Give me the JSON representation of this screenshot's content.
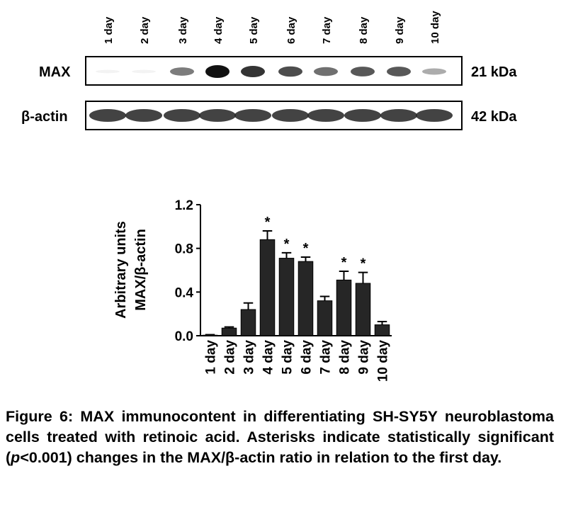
{
  "blot": {
    "rows": [
      {
        "label": "MAX",
        "size": "21 kDa"
      },
      {
        "label": "β-actin",
        "size": "42 kDa"
      }
    ]
  },
  "chart_data": {
    "type": "bar",
    "ylabel": [
      "Arbitrary units",
      "MAX/β-actin"
    ],
    "categories": [
      "1 day",
      "2 day",
      "3 day",
      "4 day",
      "5 day",
      "6 day",
      "7 day",
      "8 day",
      "9 day",
      "10 day"
    ],
    "values": [
      0.005,
      0.07,
      0.24,
      0.88,
      0.71,
      0.68,
      0.32,
      0.51,
      0.48,
      0.1
    ],
    "errors": [
      0.005,
      0.01,
      0.06,
      0.08,
      0.05,
      0.04,
      0.04,
      0.08,
      0.1,
      0.03
    ],
    "annotations": [
      null,
      null,
      null,
      "*",
      "*",
      "*",
      null,
      "*",
      "*",
      null
    ],
    "color": "#262626",
    "ylim": [
      0,
      1.2
    ],
    "yticks": [
      {
        "value": 0,
        "label": "0.0"
      },
      0.4,
      0.8,
      1.2
    ]
  },
  "caption": {
    "parts": [
      "Figure 6: MAX immunocontent in differentiating SH-SY5Y neuroblastoma cells treated with retinoic acid. Asterisks indicate statistically significant (",
      "p",
      "<0.001) changes in the MAX/β-actin ratio in relation to the first day."
    ]
  }
}
